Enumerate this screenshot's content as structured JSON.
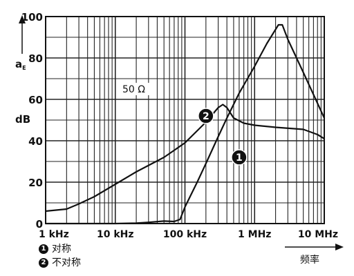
{
  "chart_data": {
    "type": "line",
    "x_scale": "log",
    "xlim": [
      1000,
      10000000
    ],
    "ylim": [
      0,
      100
    ],
    "grid": true,
    "xticks": [
      {
        "value": 1000,
        "label": "1 kHz"
      },
      {
        "value": 10000,
        "label": "10 kHz"
      },
      {
        "value": 100000,
        "label": "100 kHz"
      },
      {
        "value": 1000000,
        "label": "1 MHz"
      },
      {
        "value": 10000000,
        "label": "10 MHz"
      }
    ],
    "yticks": [
      0,
      20,
      40,
      60,
      80,
      100
    ],
    "ylabel_symbol": "a",
    "ylabel_subscript": "E",
    "ylabel_unit": "dB",
    "xlabel": "频率",
    "annotation": "50 Ω",
    "series": [
      {
        "id": "1",
        "name": "对称",
        "x": [
          1000,
          5000,
          10000,
          20000,
          30000,
          50000,
          70000,
          85000,
          100000,
          150000,
          200000,
          300000,
          400000,
          600000,
          1000000,
          1500000,
          2200000,
          2500000,
          3000000,
          5000000,
          10000000
        ],
        "y": [
          0,
          0,
          0,
          0.2,
          0.6,
          1.2,
          1,
          2,
          8,
          20,
          29,
          42,
          51,
          63,
          76,
          87,
          96,
          96,
          89,
          73,
          51
        ]
      },
      {
        "id": "2",
        "name": "不对称",
        "x": [
          1000,
          2000,
          3000,
          5000,
          10000,
          20000,
          50000,
          100000,
          200000,
          300000,
          350000,
          400000,
          500000,
          700000,
          1000000,
          2000000,
          5000000,
          8000000,
          10000000
        ],
        "y": [
          6,
          7,
          9.5,
          13,
          19,
          25,
          32,
          39,
          49,
          56,
          57.5,
          56,
          51,
          48.5,
          47.5,
          46.5,
          45.5,
          43,
          41
        ]
      }
    ],
    "curve_markers": [
      {
        "series": "1",
        "label": "1",
        "x": 600000,
        "y": 32
      },
      {
        "series": "2",
        "label": "2",
        "x": 200000,
        "y": 52
      }
    ]
  }
}
